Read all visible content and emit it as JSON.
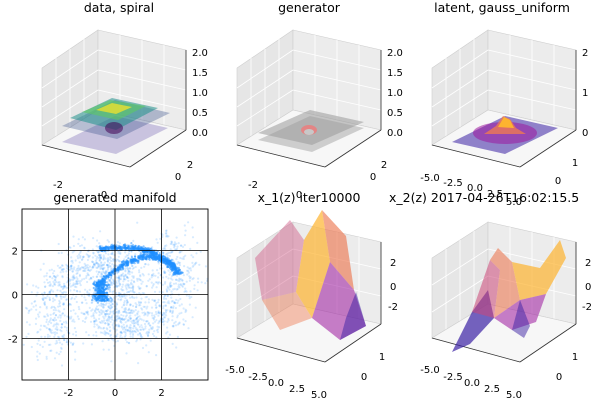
{
  "chart_data": [
    {
      "type": "surface3d",
      "title": "data, spiral",
      "z_ticks": [
        "2.0",
        "1.5",
        "1.0",
        "0.5",
        "0.0"
      ],
      "x_ticks": [
        "-2",
        "0"
      ],
      "y_ticks": [
        "2",
        "0"
      ],
      "colormap": "viridis",
      "surface_colors": [
        "#3b528b",
        "#21918c",
        "#5ec962",
        "#fde725"
      ]
    },
    {
      "type": "surface3d",
      "title": "generator",
      "z_ticks": [
        "2.0",
        "1.5",
        "1.0",
        "0.5",
        "0.0"
      ],
      "x_ticks": [
        "-2",
        "0"
      ],
      "y_ticks": [
        "2",
        "0"
      ],
      "colormap": "gray",
      "surface_colors": [
        "#6e6e6e",
        "#9a9a9a",
        "#c8c8c8"
      ]
    },
    {
      "type": "surface3d",
      "title": "latent, gauss_uniform",
      "z_ticks": [
        "2",
        "1",
        "0"
      ],
      "x_ticks": [
        "-5.0",
        "-2.5",
        "0.0",
        "2.5",
        "5.0"
      ],
      "y_ticks": [
        "1",
        "0"
      ],
      "colormap": "plasma",
      "surface_colors": [
        "#3b21a4",
        "#9c179e",
        "#ed7953",
        "#fdb42f"
      ]
    },
    {
      "type": "scatter",
      "title": "generated manifold",
      "x_ticks": [
        -2,
        0,
        2
      ],
      "y_ticks": [
        2,
        0,
        -2
      ],
      "xlim": [
        -4,
        4
      ],
      "ylim": [
        -3.9,
        3.9
      ],
      "grid": true,
      "point_color": "#1f8fff",
      "n_points": 1800
    },
    {
      "type": "surface3d",
      "title": "x_1(z) iter10000",
      "z_ticks": [
        "2",
        "0",
        "-2"
      ],
      "x_ticks": [
        "-5.0",
        "-2.5",
        "0.0",
        "2.5",
        "5.0"
      ],
      "y_ticks": [
        "1",
        "0"
      ],
      "colormap": "plasma",
      "surface_colors": [
        "#3b21a4",
        "#9c179e",
        "#cc4778",
        "#ed7953",
        "#fdb42f"
      ]
    },
    {
      "type": "surface3d",
      "title": "x_2(z) 2017-04-26T16:02:15.5",
      "z_ticks": [
        "2",
        "0",
        "-2"
      ],
      "x_ticks": [
        "-5.0",
        "-2.5",
        "0.0",
        "2.5",
        "5.0"
      ],
      "y_ticks": [
        "1",
        "0"
      ],
      "colormap": "plasma",
      "surface_colors": [
        "#3b21a4",
        "#9c179e",
        "#cc4778",
        "#ed7953",
        "#fdb42f"
      ]
    }
  ]
}
